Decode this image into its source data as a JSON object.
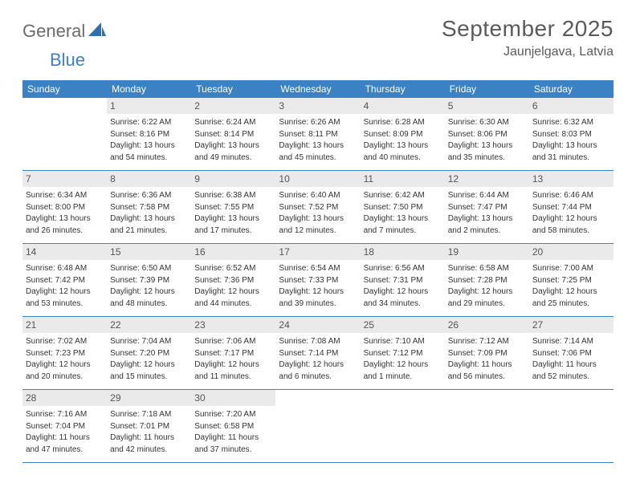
{
  "logo": {
    "text1": "General",
    "text2": "Blue"
  },
  "title": "September 2025",
  "location": "Jaunjelgava, Latvia",
  "colors": {
    "header_bg": "#3b82c4",
    "header_text": "#ffffff",
    "daynum_bg": "#eaeaea",
    "daynum_text": "#555555",
    "body_text": "#333333",
    "title_text": "#5a5a5a",
    "logo_gray": "#6b6b6b",
    "logo_blue": "#3b7fc4",
    "row_border": "#3b82c4",
    "page_bg": "#ffffff"
  },
  "typography": {
    "title_fontsize": 28,
    "location_fontsize": 16,
    "dayheader_fontsize": 12,
    "daynum_fontsize": 12,
    "body_fontsize": 10,
    "logo_fontsize": 22
  },
  "day_names": [
    "Sunday",
    "Monday",
    "Tuesday",
    "Wednesday",
    "Thursday",
    "Friday",
    "Saturday"
  ],
  "weeks": [
    [
      null,
      {
        "n": "1",
        "sr": "Sunrise: 6:22 AM",
        "ss": "Sunset: 8:16 PM",
        "dl1": "Daylight: 13 hours",
        "dl2": "and 54 minutes."
      },
      {
        "n": "2",
        "sr": "Sunrise: 6:24 AM",
        "ss": "Sunset: 8:14 PM",
        "dl1": "Daylight: 13 hours",
        "dl2": "and 49 minutes."
      },
      {
        "n": "3",
        "sr": "Sunrise: 6:26 AM",
        "ss": "Sunset: 8:11 PM",
        "dl1": "Daylight: 13 hours",
        "dl2": "and 45 minutes."
      },
      {
        "n": "4",
        "sr": "Sunrise: 6:28 AM",
        "ss": "Sunset: 8:09 PM",
        "dl1": "Daylight: 13 hours",
        "dl2": "and 40 minutes."
      },
      {
        "n": "5",
        "sr": "Sunrise: 6:30 AM",
        "ss": "Sunset: 8:06 PM",
        "dl1": "Daylight: 13 hours",
        "dl2": "and 35 minutes."
      },
      {
        "n": "6",
        "sr": "Sunrise: 6:32 AM",
        "ss": "Sunset: 8:03 PM",
        "dl1": "Daylight: 13 hours",
        "dl2": "and 31 minutes."
      }
    ],
    [
      {
        "n": "7",
        "sr": "Sunrise: 6:34 AM",
        "ss": "Sunset: 8:00 PM",
        "dl1": "Daylight: 13 hours",
        "dl2": "and 26 minutes."
      },
      {
        "n": "8",
        "sr": "Sunrise: 6:36 AM",
        "ss": "Sunset: 7:58 PM",
        "dl1": "Daylight: 13 hours",
        "dl2": "and 21 minutes."
      },
      {
        "n": "9",
        "sr": "Sunrise: 6:38 AM",
        "ss": "Sunset: 7:55 PM",
        "dl1": "Daylight: 13 hours",
        "dl2": "and 17 minutes."
      },
      {
        "n": "10",
        "sr": "Sunrise: 6:40 AM",
        "ss": "Sunset: 7:52 PM",
        "dl1": "Daylight: 13 hours",
        "dl2": "and 12 minutes."
      },
      {
        "n": "11",
        "sr": "Sunrise: 6:42 AM",
        "ss": "Sunset: 7:50 PM",
        "dl1": "Daylight: 13 hours",
        "dl2": "and 7 minutes."
      },
      {
        "n": "12",
        "sr": "Sunrise: 6:44 AM",
        "ss": "Sunset: 7:47 PM",
        "dl1": "Daylight: 13 hours",
        "dl2": "and 2 minutes."
      },
      {
        "n": "13",
        "sr": "Sunrise: 6:46 AM",
        "ss": "Sunset: 7:44 PM",
        "dl1": "Daylight: 12 hours",
        "dl2": "and 58 minutes."
      }
    ],
    [
      {
        "n": "14",
        "sr": "Sunrise: 6:48 AM",
        "ss": "Sunset: 7:42 PM",
        "dl1": "Daylight: 12 hours",
        "dl2": "and 53 minutes."
      },
      {
        "n": "15",
        "sr": "Sunrise: 6:50 AM",
        "ss": "Sunset: 7:39 PM",
        "dl1": "Daylight: 12 hours",
        "dl2": "and 48 minutes."
      },
      {
        "n": "16",
        "sr": "Sunrise: 6:52 AM",
        "ss": "Sunset: 7:36 PM",
        "dl1": "Daylight: 12 hours",
        "dl2": "and 44 minutes."
      },
      {
        "n": "17",
        "sr": "Sunrise: 6:54 AM",
        "ss": "Sunset: 7:33 PM",
        "dl1": "Daylight: 12 hours",
        "dl2": "and 39 minutes."
      },
      {
        "n": "18",
        "sr": "Sunrise: 6:56 AM",
        "ss": "Sunset: 7:31 PM",
        "dl1": "Daylight: 12 hours",
        "dl2": "and 34 minutes."
      },
      {
        "n": "19",
        "sr": "Sunrise: 6:58 AM",
        "ss": "Sunset: 7:28 PM",
        "dl1": "Daylight: 12 hours",
        "dl2": "and 29 minutes."
      },
      {
        "n": "20",
        "sr": "Sunrise: 7:00 AM",
        "ss": "Sunset: 7:25 PM",
        "dl1": "Daylight: 12 hours",
        "dl2": "and 25 minutes."
      }
    ],
    [
      {
        "n": "21",
        "sr": "Sunrise: 7:02 AM",
        "ss": "Sunset: 7:23 PM",
        "dl1": "Daylight: 12 hours",
        "dl2": "and 20 minutes."
      },
      {
        "n": "22",
        "sr": "Sunrise: 7:04 AM",
        "ss": "Sunset: 7:20 PM",
        "dl1": "Daylight: 12 hours",
        "dl2": "and 15 minutes."
      },
      {
        "n": "23",
        "sr": "Sunrise: 7:06 AM",
        "ss": "Sunset: 7:17 PM",
        "dl1": "Daylight: 12 hours",
        "dl2": "and 11 minutes."
      },
      {
        "n": "24",
        "sr": "Sunrise: 7:08 AM",
        "ss": "Sunset: 7:14 PM",
        "dl1": "Daylight: 12 hours",
        "dl2": "and 6 minutes."
      },
      {
        "n": "25",
        "sr": "Sunrise: 7:10 AM",
        "ss": "Sunset: 7:12 PM",
        "dl1": "Daylight: 12 hours",
        "dl2": "and 1 minute."
      },
      {
        "n": "26",
        "sr": "Sunrise: 7:12 AM",
        "ss": "Sunset: 7:09 PM",
        "dl1": "Daylight: 11 hours",
        "dl2": "and 56 minutes."
      },
      {
        "n": "27",
        "sr": "Sunrise: 7:14 AM",
        "ss": "Sunset: 7:06 PM",
        "dl1": "Daylight: 11 hours",
        "dl2": "and 52 minutes."
      }
    ],
    [
      {
        "n": "28",
        "sr": "Sunrise: 7:16 AM",
        "ss": "Sunset: 7:04 PM",
        "dl1": "Daylight: 11 hours",
        "dl2": "and 47 minutes."
      },
      {
        "n": "29",
        "sr": "Sunrise: 7:18 AM",
        "ss": "Sunset: 7:01 PM",
        "dl1": "Daylight: 11 hours",
        "dl2": "and 42 minutes."
      },
      {
        "n": "30",
        "sr": "Sunrise: 7:20 AM",
        "ss": "Sunset: 6:58 PM",
        "dl1": "Daylight: 11 hours",
        "dl2": "and 37 minutes."
      },
      null,
      null,
      null,
      null
    ]
  ]
}
